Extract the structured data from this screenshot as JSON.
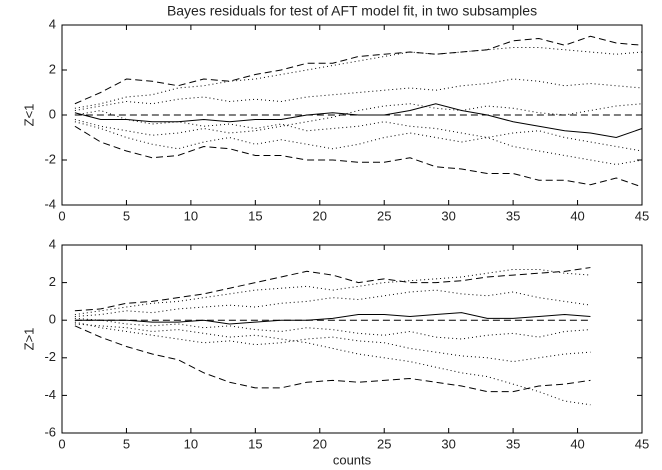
{
  "chart_data": [
    {
      "type": "line",
      "title": "Bayes residuals for test of AFT model fit, in two subsamples",
      "y_label": "Z<1",
      "x": [
        1,
        3,
        5,
        7,
        9,
        11,
        13,
        15,
        17,
        19,
        21,
        23,
        25,
        27,
        29,
        31,
        33,
        35,
        37,
        39,
        41,
        43,
        45
      ],
      "xlim": [
        0,
        45
      ],
      "xticks": [
        0,
        5,
        10,
        15,
        20,
        25,
        30,
        35,
        40,
        45
      ],
      "ylim": [
        -4,
        4
      ],
      "yticks": [
        -4,
        -2,
        0,
        2,
        4
      ],
      "grid": false,
      "series": [
        {
          "color": "#000000",
          "style": "dashed",
          "values": [
            0.5,
            1.0,
            1.6,
            1.5,
            1.3,
            1.6,
            1.5,
            1.8,
            2.0,
            2.3,
            2.3,
            2.6,
            2.7,
            2.8,
            2.7,
            2.8,
            2.9,
            3.3,
            3.4,
            3.1,
            3.5,
            3.2,
            3.1
          ]
        },
        {
          "color": "#000000",
          "style": "dashed",
          "values": [
            -0.5,
            -1.2,
            -1.6,
            -1.9,
            -1.8,
            -1.4,
            -1.5,
            -1.8,
            -1.8,
            -2.0,
            -2.0,
            -2.1,
            -2.1,
            -1.9,
            -2.3,
            -2.4,
            -2.6,
            -2.6,
            -2.9,
            -2.9,
            -3.1,
            -2.8,
            -3.2
          ]
        },
        {
          "color": "#000000",
          "style": "dashed",
          "values": [
            0,
            0,
            0,
            0,
            0,
            0,
            0,
            0,
            0,
            0,
            0,
            0,
            0,
            0,
            0,
            0,
            0,
            0,
            0,
            0,
            0,
            0,
            0
          ]
        },
        {
          "color": "#000000",
          "style": "solid",
          "values": [
            0.1,
            -0.2,
            -0.2,
            -0.3,
            -0.3,
            -0.2,
            -0.3,
            -0.2,
            -0.2,
            0.0,
            0.1,
            0.0,
            0.0,
            0.2,
            0.5,
            0.2,
            0.0,
            -0.3,
            -0.5,
            -0.7,
            -0.8,
            -1.0,
            -0.6
          ]
        },
        {
          "color": "#000000",
          "style": "dotted",
          "values": [
            0.3,
            0.5,
            0.8,
            0.9,
            1.2,
            1.3,
            1.5,
            1.6,
            1.8,
            2.0,
            2.2,
            2.4,
            2.6,
            2.8,
            2.7,
            2.8,
            2.9,
            3.0,
            3.0,
            2.9,
            2.8,
            2.7,
            2.8
          ]
        },
        {
          "color": "#000000",
          "style": "dotted",
          "values": [
            0.2,
            0.4,
            0.6,
            0.5,
            0.7,
            0.8,
            0.6,
            0.7,
            0.6,
            0.8,
            0.9,
            1.0,
            1.1,
            1.2,
            1.1,
            1.3,
            1.4,
            1.6,
            1.5,
            1.3,
            1.4,
            1.3,
            1.2
          ]
        },
        {
          "color": "#000000",
          "style": "dotted",
          "values": [
            -0.2,
            -0.5,
            -0.7,
            -0.9,
            -0.8,
            -0.6,
            -0.8,
            -0.7,
            -0.5,
            -0.3,
            -0.1,
            0.2,
            0.4,
            0.5,
            0.3,
            0.2,
            0.4,
            0.3,
            0.1,
            0.0,
            0.2,
            0.4,
            0.5
          ]
        },
        {
          "color": "#000000",
          "style": "dotted",
          "values": [
            -0.3,
            -0.6,
            -1.0,
            -1.3,
            -1.5,
            -1.2,
            -1.0,
            -1.3,
            -1.1,
            -1.3,
            -1.5,
            -1.3,
            -1.0,
            -0.8,
            -1.0,
            -1.2,
            -1.0,
            -1.4,
            -1.6,
            -1.8,
            -2.0,
            -2.2,
            -2.0
          ]
        },
        {
          "color": "#000000",
          "style": "dotted",
          "values": [
            0.0,
            0.2,
            -0.2,
            -0.4,
            -0.3,
            -0.5,
            -0.4,
            -0.6,
            -0.4,
            -0.7,
            -0.6,
            -0.5,
            -0.3,
            -0.5,
            -0.6,
            -0.8,
            -1.0,
            -0.8,
            -0.7,
            -1.0,
            -1.2,
            -1.4,
            -1.6
          ]
        }
      ]
    },
    {
      "type": "line",
      "y_label": "Z>1",
      "x_label": "counts",
      "x": [
        1,
        3,
        5,
        7,
        9,
        11,
        13,
        15,
        17,
        19,
        21,
        23,
        25,
        27,
        29,
        31,
        33,
        35,
        37,
        39,
        41
      ],
      "xlim": [
        0,
        45
      ],
      "xticks": [
        0,
        5,
        10,
        15,
        20,
        25,
        30,
        35,
        40,
        45
      ],
      "ylim": [
        -6,
        4
      ],
      "yticks": [
        -6,
        -4,
        -2,
        0,
        2,
        4
      ],
      "grid": false,
      "series": [
        {
          "color": "#000000",
          "style": "dashed",
          "values": [
            0.5,
            0.6,
            0.9,
            1.0,
            1.2,
            1.4,
            1.7,
            2.0,
            2.3,
            2.6,
            2.4,
            2.0,
            2.2,
            2.0,
            2.0,
            2.1,
            2.3,
            2.4,
            2.5,
            2.6,
            2.8
          ]
        },
        {
          "color": "#000000",
          "style": "dashed",
          "values": [
            -0.3,
            -0.9,
            -1.4,
            -1.8,
            -2.1,
            -2.8,
            -3.3,
            -3.6,
            -3.6,
            -3.3,
            -3.2,
            -3.3,
            -3.2,
            -3.1,
            -3.3,
            -3.5,
            -3.8,
            -3.8,
            -3.5,
            -3.4,
            -3.2
          ]
        },
        {
          "color": "#000000",
          "style": "dashed",
          "values": [
            0,
            0,
            0,
            0,
            0,
            0,
            0,
            0,
            0,
            0,
            0,
            0,
            0,
            0,
            0,
            0,
            0,
            0,
            0,
            0,
            0
          ]
        },
        {
          "color": "#000000",
          "style": "solid",
          "values": [
            0.0,
            0.0,
            0.0,
            -0.1,
            -0.1,
            0.0,
            -0.2,
            -0.1,
            0.0,
            0.0,
            0.1,
            0.3,
            0.3,
            0.2,
            0.3,
            0.4,
            0.1,
            0.1,
            0.2,
            0.3,
            0.2
          ]
        },
        {
          "color": "#000000",
          "style": "dotted",
          "values": [
            0.3,
            0.5,
            0.7,
            0.9,
            1.0,
            1.2,
            1.4,
            1.6,
            1.7,
            1.8,
            1.6,
            1.8,
            2.0,
            2.1,
            2.2,
            2.3,
            2.5,
            2.7,
            2.7,
            2.5,
            2.4
          ]
        },
        {
          "color": "#000000",
          "style": "dotted",
          "values": [
            0.2,
            0.3,
            0.5,
            0.4,
            0.6,
            0.7,
            0.8,
            0.7,
            0.9,
            1.0,
            1.2,
            1.1,
            1.3,
            1.5,
            1.6,
            1.4,
            1.3,
            1.5,
            1.2,
            1.0,
            0.8
          ]
        },
        {
          "color": "#000000",
          "style": "dotted",
          "values": [
            -0.2,
            -0.3,
            -0.4,
            -0.6,
            -0.5,
            -0.7,
            -0.9,
            -0.8,
            -1.0,
            -1.2,
            -1.5,
            -1.8,
            -2.0,
            -2.2,
            -2.5,
            -2.8,
            -3.0,
            -3.4,
            -3.8,
            -4.3,
            -4.5
          ]
        },
        {
          "color": "#000000",
          "style": "dotted",
          "values": [
            -0.1,
            -0.4,
            -0.6,
            -0.8,
            -1.0,
            -1.2,
            -1.1,
            -1.3,
            -1.2,
            -1.0,
            -0.9,
            -1.1,
            -1.2,
            -1.5,
            -1.7,
            -1.9,
            -2.0,
            -2.2,
            -2.0,
            -1.8,
            -1.7
          ]
        },
        {
          "color": "#000000",
          "style": "dotted",
          "values": [
            0.1,
            0.0,
            -0.2,
            -0.3,
            -0.2,
            -0.4,
            -0.3,
            -0.5,
            -0.6,
            -0.4,
            -0.5,
            -0.7,
            -0.8,
            -0.6,
            -0.9,
            -1.0,
            -0.8,
            -0.7,
            -0.9,
            -0.6,
            -0.5
          ]
        }
      ]
    }
  ]
}
